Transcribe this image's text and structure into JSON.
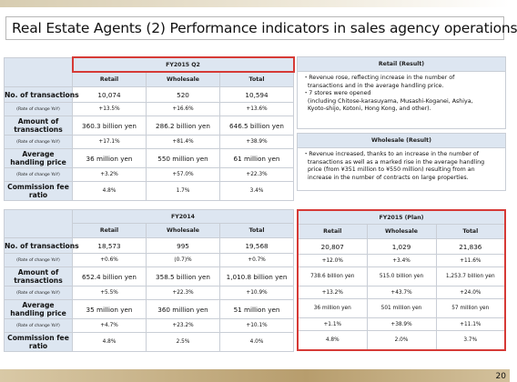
{
  "title": "Real Estate Agents (2) Performance indicators in sales agency operations",
  "columns": [
    "Retail",
    "Wholesale",
    "Total"
  ],
  "row_labels": {
    "transactions": "No. of transactions",
    "yoy": "(Rate of change YoY)",
    "amount": "Amount of transactions",
    "price": "Average handling price",
    "commission": "Commission fee ratio"
  },
  "fy2015_q2": {
    "period": "FY2015 Q2",
    "transactions": [
      "10,074",
      "520",
      "10,594"
    ],
    "transactions_yoy": [
      "+13.5%",
      "+16.6%",
      "+13.6%"
    ],
    "amount": [
      "360.3 billion yen",
      "286.2 billion yen",
      "646.5 billion yen"
    ],
    "amount_yoy": [
      "+17.1%",
      "+81.4%",
      "+38.9%"
    ],
    "price": [
      "36 million yen",
      "550 million yen",
      "61 million yen"
    ],
    "price_yoy": [
      "+3.2%",
      "+57.0%",
      "+22.3%"
    ],
    "commission": [
      "4.8%",
      "1.7%",
      "3.4%"
    ]
  },
  "fy2014": {
    "period": "FY2014",
    "transactions": [
      "18,573",
      "995",
      "19,568"
    ],
    "transactions_yoy": [
      "+0.6%",
      "(0.7)%",
      "+0.7%"
    ],
    "amount": [
      "652.4 billion yen",
      "358.5 billion yen",
      "1,010.8 billion yen"
    ],
    "amount_yoy": [
      "+5.5%",
      "+22.3%",
      "+10.9%"
    ],
    "price": [
      "35 million yen",
      "360 million yen",
      "51 million yen"
    ],
    "price_yoy": [
      "+4.7%",
      "+23.2%",
      "+10.1%"
    ],
    "commission": [
      "4.8%",
      "2.5%",
      "4.0%"
    ]
  },
  "fy2015_plan": {
    "period": "FY2015 (Plan)",
    "transactions": [
      "20,807",
      "1,029",
      "21,836"
    ],
    "transactions_yoy": [
      "+12.0%",
      "+3.4%",
      "+11.6%"
    ],
    "amount": [
      "738.6 billion yen",
      "515.0 billion yen",
      "1,253.7 billion yen"
    ],
    "amount_yoy": [
      "+13.2%",
      "+43.7%",
      "+24.0%"
    ],
    "price": [
      "36 million yen",
      "501 million yen",
      "57 million yen"
    ],
    "price_yoy": [
      "+1.1%",
      "+38.9%",
      "+11.1%"
    ],
    "commission": [
      "4.8%",
      "2.0%",
      "3.7%"
    ]
  },
  "retail_result": {
    "heading": "Retail (Result)",
    "lines": [
      "・Revenue rose, reflecting increase in the number of",
      "transactions and in the average handling price.",
      "・7 stores were opened",
      "(including Chitose-karasuyama, Musashi-Koganei, Ashiya,",
      "Kyoto-shijo, Kotoni, Hong Kong, and other)."
    ]
  },
  "wholesale_result": {
    "heading": "Wholesale (Result)",
    "lines": [
      "・Revenue increased, thanks to an increase in the number of",
      "transactions as well as a marked rise in the average handling",
      "price (from ¥351 million to ¥550 million) resulting from an",
      "increase in the number of contracts on large properties."
    ]
  },
  "page_number": "20",
  "colors": {
    "header_bg": "#dde6f1",
    "highlight_border": "#d63a36",
    "border": "#c9ced6"
  }
}
